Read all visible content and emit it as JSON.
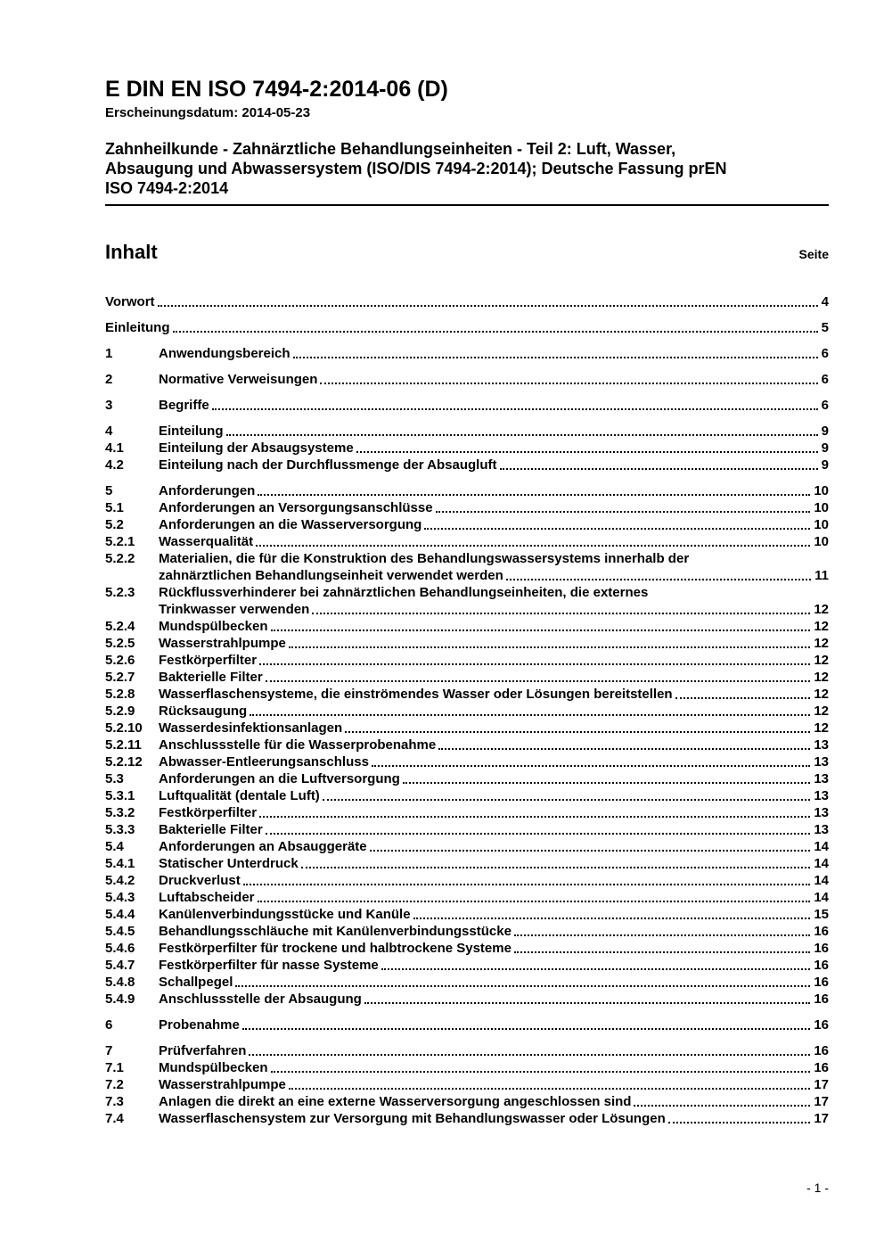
{
  "header": {
    "doc_number": "E DIN EN ISO 7494-2:2014-06 (D)",
    "release_label": "Erscheinungsdatum: 2014-05-23",
    "title_lines": [
      "Zahnheilkunde - Zahnärztliche Behandlungseinheiten - Teil 2: Luft, Wasser,",
      "Absaugung und Abwassersystem (ISO/DIS 7494-2:2014); Deutsche Fassung prEN",
      "ISO 7494-2:2014"
    ]
  },
  "toc": {
    "heading": "Inhalt",
    "page_column_label": "Seite",
    "groups": [
      {
        "entries": [
          {
            "num": "",
            "lines": [
              "Vorwort"
            ],
            "page": "4"
          }
        ]
      },
      {
        "entries": [
          {
            "num": "",
            "lines": [
              "Einleitung"
            ],
            "page": "5"
          }
        ]
      },
      {
        "entries": [
          {
            "num": "1",
            "lines": [
              "Anwendungsbereich"
            ],
            "page": "6"
          }
        ]
      },
      {
        "entries": [
          {
            "num": "2",
            "lines": [
              "Normative Verweisungen"
            ],
            "page": "6"
          }
        ]
      },
      {
        "entries": [
          {
            "num": "3",
            "lines": [
              "Begriffe"
            ],
            "page": "6"
          }
        ]
      },
      {
        "entries": [
          {
            "num": "4",
            "lines": [
              "Einteilung"
            ],
            "page": "9"
          },
          {
            "num": "4.1",
            "lines": [
              "Einteilung der Absaugsysteme"
            ],
            "page": "9"
          },
          {
            "num": "4.2",
            "lines": [
              "Einteilung nach der Durchflussmenge der Absaugluft"
            ],
            "page": "9"
          }
        ]
      },
      {
        "entries": [
          {
            "num": "5",
            "lines": [
              "Anforderungen"
            ],
            "page": "10"
          },
          {
            "num": "5.1",
            "lines": [
              "Anforderungen an Versorgungsanschlüsse"
            ],
            "page": "10"
          },
          {
            "num": "5.2",
            "lines": [
              "Anforderungen an die Wasserversorgung"
            ],
            "page": "10"
          },
          {
            "num": "5.2.1",
            "lines": [
              "Wasserqualität"
            ],
            "page": "10"
          },
          {
            "num": "5.2.2",
            "lines": [
              "Materialien, die für die Konstruktion des Behandlungswassersystems innerhalb der",
              "zahnärztlichen Behandlungseinheit verwendet werden"
            ],
            "page": "11"
          },
          {
            "num": "5.2.3",
            "lines": [
              "Rückflussverhinderer bei zahnärztlichen Behandlungseinheiten, die externes",
              "Trinkwasser verwenden"
            ],
            "page": "12"
          },
          {
            "num": "5.2.4",
            "lines": [
              "Mundspülbecken"
            ],
            "page": "12"
          },
          {
            "num": "5.2.5",
            "lines": [
              "Wasserstrahlpumpe"
            ],
            "page": "12"
          },
          {
            "num": "5.2.6",
            "lines": [
              "Festkörperfilter"
            ],
            "page": "12"
          },
          {
            "num": "5.2.7",
            "lines": [
              "Bakterielle Filter"
            ],
            "page": "12"
          },
          {
            "num": "5.2.8",
            "lines": [
              "Wasserflaschensysteme, die einströmendes Wasser oder Lösungen bereitstellen"
            ],
            "page": "12"
          },
          {
            "num": "5.2.9",
            "lines": [
              "Rücksaugung"
            ],
            "page": "12"
          },
          {
            "num": "5.2.10",
            "lines": [
              "Wasserdesinfektionsanlagen"
            ],
            "page": "12"
          },
          {
            "num": "5.2.11",
            "lines": [
              "Anschlussstelle für die Wasserprobenahme"
            ],
            "page": "13"
          },
          {
            "num": "5.2.12",
            "lines": [
              "Abwasser-Entleerungsanschluss"
            ],
            "page": "13"
          },
          {
            "num": "5.3",
            "lines": [
              "Anforderungen an die Luftversorgung"
            ],
            "page": "13"
          },
          {
            "num": "5.3.1",
            "lines": [
              "Luftqualität (dentale Luft)"
            ],
            "page": "13"
          },
          {
            "num": "5.3.2",
            "lines": [
              "Festkörperfilter"
            ],
            "page": "13"
          },
          {
            "num": "5.3.3",
            "lines": [
              "Bakterielle Filter"
            ],
            "page": "13"
          },
          {
            "num": "5.4",
            "lines": [
              "Anforderungen an Absauggeräte"
            ],
            "page": "14"
          },
          {
            "num": "5.4.1",
            "lines": [
              "Statischer Unterdruck"
            ],
            "page": "14"
          },
          {
            "num": "5.4.2",
            "lines": [
              "Druckverlust"
            ],
            "page": "14"
          },
          {
            "num": "5.4.3",
            "lines": [
              "Luftabscheider"
            ],
            "page": "14"
          },
          {
            "num": "5.4.4",
            "lines": [
              "Kanülenverbindungsstücke und Kanüle"
            ],
            "page": "15"
          },
          {
            "num": "5.4.5",
            "lines": [
              "Behandlungsschläuche mit Kanülenverbindungsstücke"
            ],
            "page": "16"
          },
          {
            "num": "5.4.6",
            "lines": [
              "Festkörperfilter für trockene und halbtrockene Systeme"
            ],
            "page": "16"
          },
          {
            "num": "5.4.7",
            "lines": [
              "Festkörperfilter für nasse Systeme"
            ],
            "page": "16"
          },
          {
            "num": "5.4.8",
            "lines": [
              "Schallpegel"
            ],
            "page": "16"
          },
          {
            "num": "5.4.9",
            "lines": [
              "Anschlussstelle der Absaugung"
            ],
            "page": "16"
          }
        ]
      },
      {
        "entries": [
          {
            "num": "6",
            "lines": [
              "Probenahme"
            ],
            "page": "16"
          }
        ]
      },
      {
        "entries": [
          {
            "num": "7",
            "lines": [
              "Prüfverfahren"
            ],
            "page": "16"
          },
          {
            "num": "7.1",
            "lines": [
              "Mundspülbecken"
            ],
            "page": "16"
          },
          {
            "num": "7.2",
            "lines": [
              "Wasserstrahlpumpe"
            ],
            "page": "17"
          },
          {
            "num": "7.3",
            "lines": [
              "Anlagen die direkt an eine externe Wasserversorgung angeschlossen sind"
            ],
            "page": "17"
          },
          {
            "num": "7.4",
            "lines": [
              "Wasserflaschensystem zur Versorgung mit Behandlungswasser oder Lösungen"
            ],
            "page": "17"
          }
        ]
      }
    ]
  },
  "footer": {
    "page_number": "- 1 -"
  }
}
